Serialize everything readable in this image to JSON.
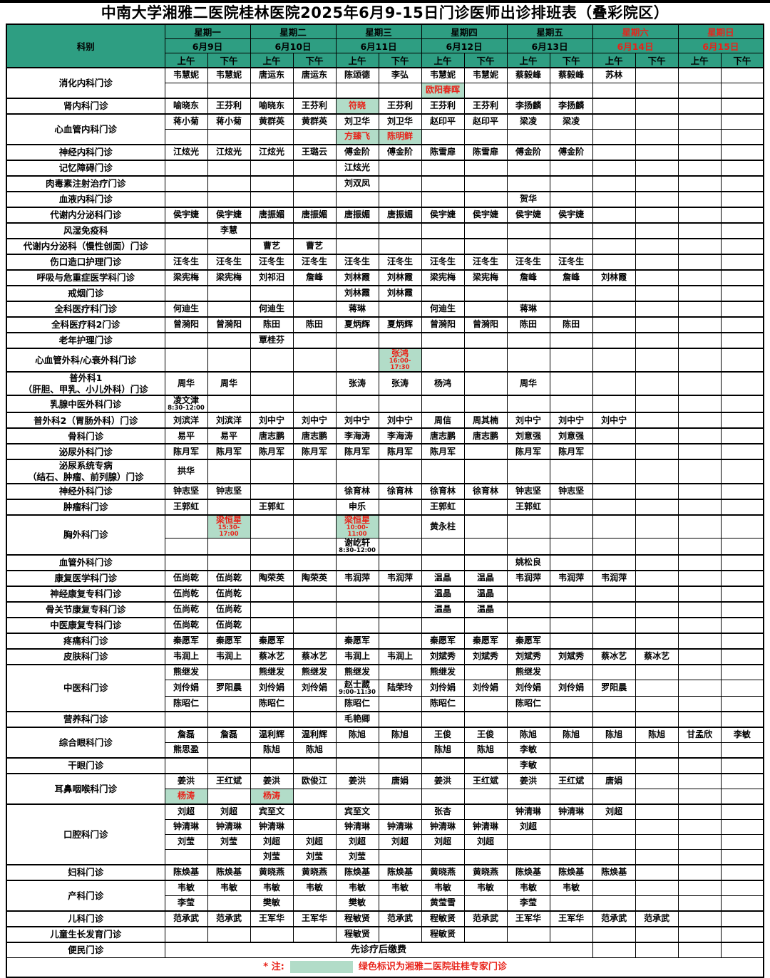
{
  "title": "中南大学湘雅二医院桂林医院2025年6月9-15日门诊医师出诊排班表（叠彩院区）",
  "colors": {
    "header_bg": "#2e9e82",
    "highlight_bg": "#b2dcc8",
    "accent_red": "#e8231a"
  },
  "header": {
    "dept_label": "科别",
    "am_label": "上午",
    "pm_label": "下午",
    "days": [
      {
        "weekday": "星期一",
        "date": "6月9日",
        "red": false
      },
      {
        "weekday": "星期二",
        "date": "6月10日",
        "red": false
      },
      {
        "weekday": "星期三",
        "date": "6月11日",
        "red": false
      },
      {
        "weekday": "星期四",
        "date": "6月12日",
        "red": false
      },
      {
        "weekday": "星期五",
        "date": "6月13日",
        "red": false
      },
      {
        "weekday": "星期六",
        "date": "6月14日",
        "red": true
      },
      {
        "weekday": "星期日",
        "date": "6月15日",
        "red": true
      }
    ]
  },
  "legend": {
    "star": "* 注:",
    "text": "绿色标识为湘雅二医院驻桂专家门诊"
  },
  "rows": [
    {
      "dept": [
        "消化内科门诊"
      ],
      "subrows": [
        [
          "韦慧妮",
          "韦慧妮",
          "唐运东",
          "唐运东",
          "陈颂德",
          "李弘",
          "韦慧妮",
          "韦慧妮",
          "蔡毅峰",
          "蔡毅峰",
          "苏林",
          "",
          "",
          ""
        ],
        [
          "",
          "",
          "",
          "",
          "",
          "",
          {
            "n": "欧阳春晖",
            "hl": true
          },
          "",
          "",
          "",
          "",
          "",
          "",
          ""
        ]
      ]
    },
    {
      "dept": [
        "肾内科门诊"
      ],
      "subrows": [
        [
          "喻晓东",
          "王芬利",
          "喻晓东",
          "王芬利",
          {
            "n": "符晓",
            "hl": true
          },
          "王芬利",
          "王芬利",
          "王芬利",
          "李扬麟",
          "李扬麟",
          "",
          "",
          "",
          ""
        ]
      ]
    },
    {
      "dept": [
        "心血管内科门诊"
      ],
      "subrows": [
        [
          "蒋小菊",
          "蒋小菊",
          "黄群英",
          "黄群英",
          "刘卫华",
          "刘卫华",
          "赵印平",
          "赵印平",
          "梁凌",
          "梁凌",
          "",
          "",
          "",
          ""
        ],
        [
          "",
          "",
          "",
          "",
          {
            "n": "方臻飞",
            "hl": true
          },
          {
            "n": "陈明鲜",
            "hl": true
          },
          "",
          "",
          "",
          "",
          "",
          "",
          "",
          ""
        ]
      ]
    },
    {
      "dept": [
        "神经内科门诊"
      ],
      "subrows": [
        [
          "江炫光",
          "江炫光",
          "江炫光",
          "王璐云",
          "傅金阶",
          "傅金阶",
          "陈雪扉",
          "陈雪扉",
          "傅金阶",
          "傅金阶",
          "",
          "",
          "",
          ""
        ]
      ]
    },
    {
      "dept": [
        "记忆障碍门诊"
      ],
      "subrows": [
        [
          "",
          "",
          "",
          "",
          "江炫光",
          "",
          "",
          "",
          "",
          "",
          "",
          "",
          "",
          ""
        ]
      ]
    },
    {
      "dept": [
        "肉毒素注射治疗门诊"
      ],
      "subrows": [
        [
          "",
          "",
          "",
          "",
          "刘双凤",
          "",
          "",
          "",
          "",
          "",
          "",
          "",
          "",
          ""
        ]
      ]
    },
    {
      "dept": [
        "血液内科门诊"
      ],
      "subrows": [
        [
          "",
          "",
          "",
          "",
          "",
          "",
          "",
          "",
          "贺华",
          "",
          "",
          "",
          "",
          ""
        ]
      ]
    },
    {
      "dept": [
        "代谢内分泌科门诊"
      ],
      "subrows": [
        [
          "侯宇婕",
          "侯宇婕",
          "唐振媚",
          "唐振媚",
          "唐振媚",
          "唐振媚",
          "侯宇婕",
          "侯宇婕",
          "侯宇婕",
          "侯宇婕",
          "",
          "",
          "",
          ""
        ]
      ]
    },
    {
      "dept": [
        "风湿免疫科"
      ],
      "subrows": [
        [
          "",
          "李慧",
          "",
          "",
          "",
          "",
          "",
          "",
          "",
          "",
          "",
          "",
          "",
          ""
        ]
      ]
    },
    {
      "dept": [
        "代谢内分泌科（慢性创面）门诊"
      ],
      "subrows": [
        [
          "",
          "",
          "曹艺",
          "曹艺",
          "",
          "",
          "",
          "",
          "",
          "",
          "",
          "",
          "",
          ""
        ]
      ]
    },
    {
      "dept": [
        "伤口造口护理门诊"
      ],
      "subrows": [
        [
          "汪冬生",
          "汪冬生",
          "汪冬生",
          "汪冬生",
          "汪冬生",
          "汪冬生",
          "汪冬生",
          "汪冬生",
          "汪冬生",
          "汪冬生",
          "",
          "",
          "",
          ""
        ]
      ]
    },
    {
      "dept": [
        "呼吸与危重症医学科门诊"
      ],
      "subrows": [
        [
          "梁宪梅",
          "梁宪梅",
          "刘祁汨",
          "詹峰",
          "刘林霞",
          "刘林霞",
          "梁宪梅",
          "梁宪梅",
          "詹峰",
          "詹峰",
          "刘林霞",
          "",
          "",
          ""
        ]
      ]
    },
    {
      "dept": [
        "戒烟门诊"
      ],
      "subrows": [
        [
          "",
          "",
          "",
          "",
          "刘林霞",
          "刘林霞",
          "",
          "",
          "",
          "",
          "",
          "",
          "",
          ""
        ]
      ]
    },
    {
      "dept": [
        "全科医疗科门诊"
      ],
      "subrows": [
        [
          "何迪生",
          "",
          "何迪生",
          "",
          "蒋琳",
          "",
          "何迪生",
          "",
          "蒋琳",
          "",
          "",
          "",
          "",
          ""
        ]
      ]
    },
    {
      "dept": [
        "全科医疗科2门诊"
      ],
      "subrows": [
        [
          "曾漪阳",
          "曾漪阳",
          "陈田",
          "陈田",
          "夏炳辉",
          "夏炳辉",
          "曾漪阳",
          "曾漪阳",
          "陈田",
          "陈田",
          "",
          "",
          "",
          ""
        ]
      ]
    },
    {
      "dept": [
        "老年护理门诊"
      ],
      "subrows": [
        [
          "",
          "",
          "覃桂芬",
          "",
          "",
          "",
          "",
          "",
          "",
          "",
          "",
          "",
          "",
          ""
        ]
      ]
    },
    {
      "dept": [
        "心血管外科/心衰外科门诊"
      ],
      "subrows": [
        [
          "",
          "",
          "",
          "",
          "",
          {
            "n": "张鸿",
            "t": "16:00-17:30",
            "hl": true
          },
          "",
          "",
          "",
          "",
          "",
          "",
          "",
          ""
        ]
      ]
    },
    {
      "dept": [
        "普外科1",
        "（肝胆、甲乳、小儿外科）门诊"
      ],
      "subrows": [
        [
          "周华",
          "周华",
          "",
          "",
          "张涛",
          "张涛",
          "杨鸿",
          "",
          "周华",
          "",
          "",
          "",
          "",
          ""
        ]
      ]
    },
    {
      "dept": [
        "乳腺中医外科门诊"
      ],
      "subrows": [
        [
          {
            "n": "凌文津",
            "t": "8:30-12:00"
          },
          "",
          "",
          "",
          "",
          "",
          "",
          "",
          "",
          "",
          "",
          "",
          "",
          ""
        ]
      ]
    },
    {
      "dept": [
        "普外科2（胃肠外科）门诊"
      ],
      "subrows": [
        [
          "刘滨洋",
          "刘滨洋",
          "刘中宁",
          "刘中宁",
          "刘中宁",
          "刘中宁",
          "周信",
          "周其楠",
          "刘中宁",
          "刘中宁",
          "刘中宁",
          "",
          "",
          ""
        ]
      ]
    },
    {
      "dept": [
        "骨科门诊"
      ],
      "subrows": [
        [
          "易平",
          "易平",
          "唐志鹏",
          "唐志鹏",
          "李海涛",
          "李海涛",
          "唐志鹏",
          "唐志鹏",
          "刘意强",
          "刘意强",
          "",
          "",
          "",
          ""
        ]
      ]
    },
    {
      "dept": [
        "泌尿外科门诊"
      ],
      "subrows": [
        [
          "陈月军",
          "陈月军",
          "陈月军",
          "陈月军",
          "陈月军",
          "陈月军",
          "陈月军",
          "",
          "陈月军",
          "陈月军",
          "",
          "",
          "",
          ""
        ]
      ]
    },
    {
      "dept": [
        "泌尿系统专病",
        "（结石、肿瘤、前列腺）门诊"
      ],
      "subrows": [
        [
          "拱华",
          "",
          "",
          "",
          "",
          "",
          "",
          "",
          "",
          "",
          "",
          "",
          "",
          ""
        ]
      ]
    },
    {
      "dept": [
        "神经外科门诊"
      ],
      "subrows": [
        [
          "钟志坚",
          "钟志坚",
          "",
          "",
          "徐育林",
          "徐育林",
          "徐育林",
          "徐育林",
          "钟志坚",
          "钟志坚",
          "",
          "",
          "",
          ""
        ]
      ]
    },
    {
      "dept": [
        "肿瘤科门诊"
      ],
      "subrows": [
        [
          "王郭虹",
          "",
          "王郭虹",
          "",
          "申乐",
          "",
          "王郭虹",
          "",
          "王郭虹",
          "",
          "",
          "",
          "",
          ""
        ]
      ]
    },
    {
      "dept": [
        "胸外科门诊"
      ],
      "subrows": [
        [
          "",
          {
            "n": "梁恒星",
            "t": "15:30-17:00",
            "hl": true
          },
          "",
          "",
          {
            "n": "梁恒星",
            "t": "10:00-11:00",
            "hl": true
          },
          "",
          "黄永柱",
          "",
          "",
          "",
          "",
          "",
          "",
          ""
        ],
        [
          "",
          "",
          "",
          "",
          {
            "n": "谢屹轩",
            "t": "8:30-12:00"
          },
          "",
          "",
          "",
          "",
          "",
          "",
          "",
          "",
          ""
        ]
      ]
    },
    {
      "dept": [
        "血管外科门诊"
      ],
      "subrows": [
        [
          "",
          "",
          "",
          "",
          "",
          "",
          "",
          "",
          "姚松良",
          "",
          "",
          "",
          "",
          ""
        ]
      ]
    },
    {
      "dept": [
        "康复医学科门诊"
      ],
      "subrows": [
        [
          "伍尚乾",
          "伍尚乾",
          "陶荣英",
          "陶荣英",
          "韦润萍",
          "韦润萍",
          "温晶",
          "温晶",
          "韦润萍",
          "韦润萍",
          "韦润萍",
          "",
          "",
          ""
        ]
      ]
    },
    {
      "dept": [
        "神经康复专科门诊"
      ],
      "subrows": [
        [
          "伍尚乾",
          "伍尚乾",
          "",
          "",
          "",
          "",
          "温晶",
          "温晶",
          "",
          "",
          "",
          "",
          "",
          ""
        ]
      ]
    },
    {
      "dept": [
        "骨关节康复专科门诊"
      ],
      "subrows": [
        [
          "伍尚乾",
          "伍尚乾",
          "",
          "",
          "",
          "",
          "温晶",
          "温晶",
          "",
          "",
          "",
          "",
          "",
          ""
        ]
      ]
    },
    {
      "dept": [
        "中医康复专科门诊"
      ],
      "subrows": [
        [
          "伍尚乾",
          "伍尚乾",
          "",
          "",
          "",
          "",
          "",
          "",
          "",
          "",
          "",
          "",
          "",
          ""
        ]
      ]
    },
    {
      "dept": [
        "疼痛科门诊"
      ],
      "subrows": [
        [
          "秦愿军",
          "秦愿军",
          "秦愿军",
          "",
          "秦愿军",
          "",
          "秦愿军",
          "秦愿军",
          "秦愿军",
          "",
          "",
          "",
          "",
          ""
        ]
      ]
    },
    {
      "dept": [
        "皮肤科门诊"
      ],
      "subrows": [
        [
          "韦润上",
          "韦润上",
          "蔡冰艺",
          "蔡冰艺",
          "韦润上",
          "韦润上",
          "刘斌秀",
          "刘斌秀",
          "刘斌秀",
          "刘斌秀",
          "蔡冰艺",
          "蔡冰艺",
          "",
          ""
        ]
      ]
    },
    {
      "dept": [
        "中医科门诊"
      ],
      "subrows": [
        [
          "熊继发",
          "",
          "熊继发",
          "熊继发",
          "熊继发",
          "",
          "熊继发",
          "",
          "熊继发",
          "",
          "",
          "",
          "",
          ""
        ],
        [
          "刘伶娟",
          "罗阳晨",
          "刘伶娟",
          "刘伶娟",
          {
            "n": "赵士葳",
            "t": "9:00-11:30"
          },
          "陆荣玲",
          "刘伶娟",
          "刘伶娟",
          "刘伶娟",
          "刘伶娟",
          "罗阳晨",
          "",
          "",
          ""
        ],
        [
          "陈昭仁",
          "",
          "陈昭仁",
          "",
          "陈昭仁",
          "",
          "陈昭仁",
          "",
          "陈昭仁",
          "",
          "",
          "",
          "",
          ""
        ]
      ]
    },
    {
      "dept": [
        "营养科门诊"
      ],
      "subrows": [
        [
          "",
          "",
          "",
          "",
          "毛艳卿",
          "",
          "",
          "",
          "",
          "",
          "",
          "",
          "",
          ""
        ]
      ]
    },
    {
      "dept": [
        "综合眼科门诊"
      ],
      "subrows": [
        [
          "詹磊",
          "詹磊",
          "温利辉",
          "温利辉",
          "陈旭",
          "陈旭",
          "王俊",
          "王俊",
          "陈旭",
          "陈旭",
          "陈旭",
          "陈旭",
          "甘孟欣",
          "李敏"
        ],
        [
          "熊思盈",
          "",
          "陈旭",
          "陈旭",
          "",
          "",
          "陈旭",
          "陈旭",
          "李敏",
          "",
          "",
          "",
          "",
          ""
        ]
      ]
    },
    {
      "dept": [
        "干眼门诊"
      ],
      "subrows": [
        [
          "",
          "",
          "",
          "",
          "",
          "",
          "",
          "",
          "李敏",
          "",
          "",
          "",
          "",
          ""
        ]
      ]
    },
    {
      "dept": [
        "耳鼻咽喉科门诊"
      ],
      "subrows": [
        [
          "姜洪",
          "王红斌",
          "姜洪",
          "欧俊江",
          "姜洪",
          "唐娟",
          "姜洪",
          "王红斌",
          "姜洪",
          "王红斌",
          "唐娟",
          "",
          "",
          ""
        ],
        [
          {
            "n": "杨涛",
            "hl": true
          },
          "",
          {
            "n": "杨涛",
            "hl": true
          },
          "",
          "",
          "",
          "",
          "",
          "",
          "",
          "",
          "",
          "",
          ""
        ]
      ]
    },
    {
      "dept": [
        "口腔科门诊"
      ],
      "subrows": [
        [
          "刘超",
          "刘超",
          "宾至文",
          "",
          "宾至文",
          "",
          "张杏",
          "",
          "钟清琳",
          "钟清琳",
          "刘超",
          "",
          "",
          ""
        ],
        [
          "钟清琳",
          "钟清琳",
          "钟清琳",
          "",
          "钟清琳",
          "钟清琳",
          "钟清琳",
          "钟清琳",
          "刘超",
          "",
          "",
          "",
          "",
          ""
        ],
        [
          "刘莹",
          "刘莹",
          "刘超",
          "刘超",
          "刘超",
          "刘超",
          "刘超",
          "刘超",
          "",
          "",
          "",
          "",
          "",
          ""
        ],
        [
          "",
          "",
          "刘莹",
          "刘莹",
          "刘莹",
          "",
          "",
          "",
          "",
          "",
          "",
          "",
          "",
          ""
        ]
      ]
    },
    {
      "dept": [
        "妇科门诊"
      ],
      "subrows": [
        [
          "陈焕基",
          "陈焕基",
          "黄晓燕",
          "黄晓燕",
          "陈焕基",
          "陈焕基",
          "黄晓燕",
          "黄晓燕",
          "陈焕基",
          "陈焕基",
          "陈焕基",
          "",
          "",
          ""
        ]
      ]
    },
    {
      "dept": [
        "产科门诊"
      ],
      "subrows": [
        [
          "韦敏",
          "韦敏",
          "韦敏",
          "韦敏",
          "韦敏",
          "韦敏",
          "韦敏",
          "韦敏",
          "韦敏",
          "韦敏",
          "",
          "",
          "",
          ""
        ],
        [
          "李莹",
          "",
          "樊敏",
          "",
          "樊敏",
          "",
          "黄莹雪",
          "",
          "李莹",
          "",
          "",
          "",
          "",
          ""
        ]
      ]
    },
    {
      "dept": [
        "儿科门诊"
      ],
      "subrows": [
        [
          "范承武",
          "范承武",
          "王军华",
          "王军华",
          "程敏贤",
          "范承武",
          "程敏贤",
          "范承武",
          "王军华",
          "王军华",
          "范承武",
          "范承武",
          "",
          ""
        ]
      ]
    },
    {
      "dept": [
        "儿童生长发育门诊"
      ],
      "subrows": [
        [
          "",
          "",
          "",
          "",
          "程敏贤",
          "",
          "程敏贤",
          "",
          "",
          "",
          "",
          "",
          "",
          ""
        ]
      ]
    },
    {
      "dept": [
        "便民门诊"
      ],
      "merge": {
        "text": "先诊疗后缴费",
        "span": 10
      },
      "subrows": [
        []
      ]
    }
  ]
}
